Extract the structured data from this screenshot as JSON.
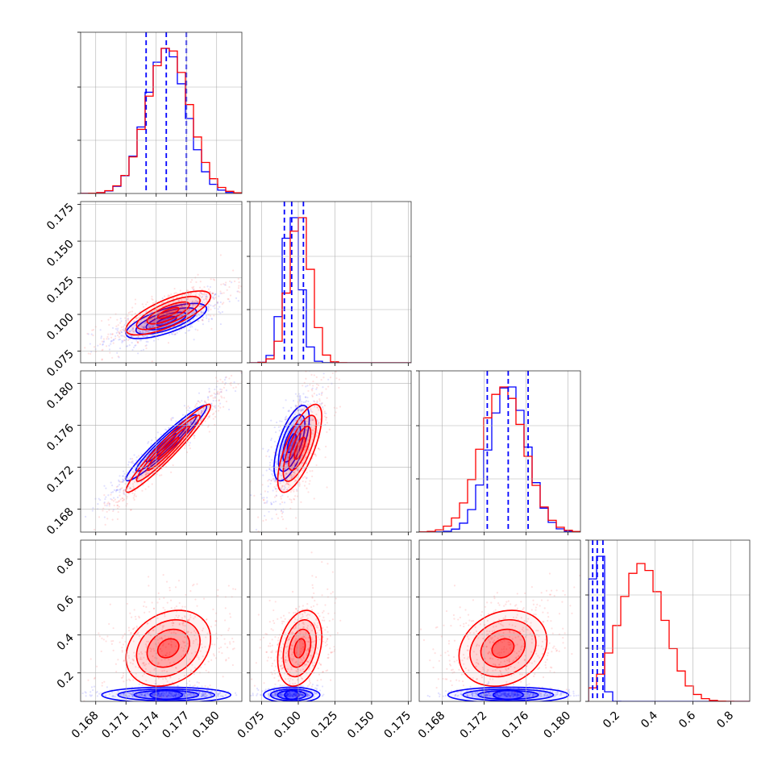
{
  "chart_data": {
    "type": "scatter",
    "kind": "corner-plot",
    "grid": true,
    "n_params": 4,
    "series": [
      {
        "color": "#0000ff"
      },
      {
        "color": "#ff0000"
      }
    ],
    "quantile_lines_color": "#0000ff",
    "axes": [
      {
        "range": [
          0.1665,
          0.1825
        ],
        "ticks": [
          0.168,
          0.171,
          0.174,
          0.177,
          0.18
        ],
        "tick_labels": [
          "0.168",
          "0.171",
          "0.174",
          "0.177",
          "0.180"
        ]
      },
      {
        "range": [
          0.067,
          0.177
        ],
        "ticks": [
          0.075,
          0.1,
          0.125,
          0.15,
          0.175
        ],
        "tick_labels": [
          "0.075",
          "0.100",
          "0.125",
          "0.150",
          "0.175"
        ]
      },
      {
        "range": [
          0.1658,
          0.1812
        ],
        "ticks": [
          0.168,
          0.172,
          0.176,
          0.18
        ],
        "tick_labels": [
          "0.168",
          "0.172",
          "0.176",
          "0.180"
        ]
      },
      {
        "range": [
          0.05,
          0.9
        ],
        "ticks": [
          0.2,
          0.4,
          0.6,
          0.8
        ],
        "tick_labels": [
          "0.2",
          "0.4",
          "0.6",
          "0.8"
        ]
      }
    ],
    "marginals": [
      {
        "quantiles": [
          0.173,
          0.175,
          0.177
        ],
        "blue": {
          "mean": 0.175,
          "sd": 0.002
        },
        "red": {
          "mean": 0.1752,
          "sd": 0.0021
        }
      },
      {
        "quantiles": [
          0.0905,
          0.0955,
          0.1035
        ],
        "blue": {
          "mean": 0.0955,
          "sd": 0.006
        },
        "red": {
          "mean": 0.101,
          "sd": 0.0075
        }
      },
      {
        "quantiles": [
          0.1723,
          0.1743,
          0.1762
        ],
        "blue": {
          "mean": 0.1743,
          "sd": 0.0018
        },
        "red": {
          "mean": 0.1738,
          "sd": 0.0021
        }
      },
      {
        "quantiles": [
          0.072,
          0.096,
          0.126
        ],
        "blue": {
          "mean": 0.095,
          "sd": 0.025
        },
        "red": {
          "mean": 0.33,
          "sd": 0.1
        }
      }
    ],
    "pairs": [
      {
        "row": 1,
        "col": 0,
        "blue": {
          "cx": 0.175,
          "cy": 0.0955,
          "rho": 0.7
        },
        "red": {
          "cx": 0.1752,
          "cy": 0.101,
          "rho": 0.75
        }
      },
      {
        "row": 2,
        "col": 0,
        "blue": {
          "cx": 0.175,
          "cy": 0.1743,
          "rho": 0.96
        },
        "red": {
          "cx": 0.1752,
          "cy": 0.1738,
          "rho": 0.96
        }
      },
      {
        "row": 2,
        "col": 1,
        "blue": {
          "cx": 0.0955,
          "cy": 0.1743,
          "rho": 0.65
        },
        "red": {
          "cx": 0.101,
          "cy": 0.1738,
          "rho": 0.72
        }
      },
      {
        "row": 3,
        "col": 0,
        "blue": {
          "cx": 0.175,
          "cy": 0.095,
          "rho": 0.0
        },
        "red": {
          "cx": 0.1752,
          "cy": 0.33,
          "rho": 0.25
        }
      },
      {
        "row": 3,
        "col": 1,
        "blue": {
          "cx": 0.0955,
          "cy": 0.095,
          "rho": 0.0
        },
        "red": {
          "cx": 0.101,
          "cy": 0.33,
          "rho": 0.3
        }
      },
      {
        "row": 3,
        "col": 2,
        "blue": {
          "cx": 0.1743,
          "cy": 0.095,
          "rho": 0.0
        },
        "red": {
          "cx": 0.1738,
          "cy": 0.33,
          "rho": 0.2
        }
      }
    ]
  }
}
